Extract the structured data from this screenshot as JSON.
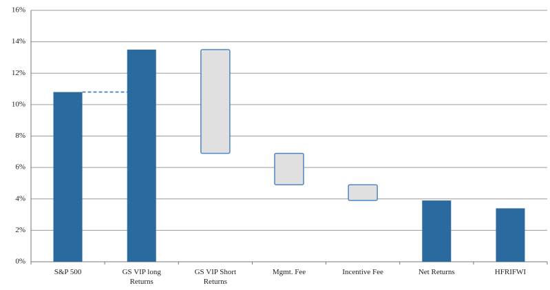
{
  "chart_data": {
    "type": "waterfall",
    "categories": [
      "S&P 500",
      "GS VIP long Returns",
      "GS VIP Short Returns",
      "Mgmt. Fee",
      "Incentive Fee",
      "Net Returns",
      "HFRIFWI"
    ],
    "values": [
      10.8,
      13.5,
      -6.6,
      -2.0,
      -1.0,
      3.9,
      3.4
    ],
    "measure": [
      "absolute",
      "absolute",
      "relative",
      "relative",
      "relative",
      "absolute",
      "absolute"
    ],
    "colors": {
      "absolute": "#2b6a9e",
      "relative": "#e0e0e0",
      "relative_edge": "#4a86c5"
    },
    "ylim": [
      0,
      16
    ],
    "yticks": [
      {
        "value": 0,
        "label": "0%"
      },
      {
        "value": 2,
        "label": "2%"
      },
      {
        "value": 4,
        "label": "4%"
      },
      {
        "value": 6,
        "label": "6%"
      },
      {
        "value": 8,
        "label": "8%"
      },
      {
        "value": 10,
        "label": "10%"
      },
      {
        "value": 12,
        "label": "12%"
      },
      {
        "value": 14,
        "label": "14%"
      },
      {
        "value": 16,
        "label": "16%"
      }
    ],
    "grid": true
  }
}
